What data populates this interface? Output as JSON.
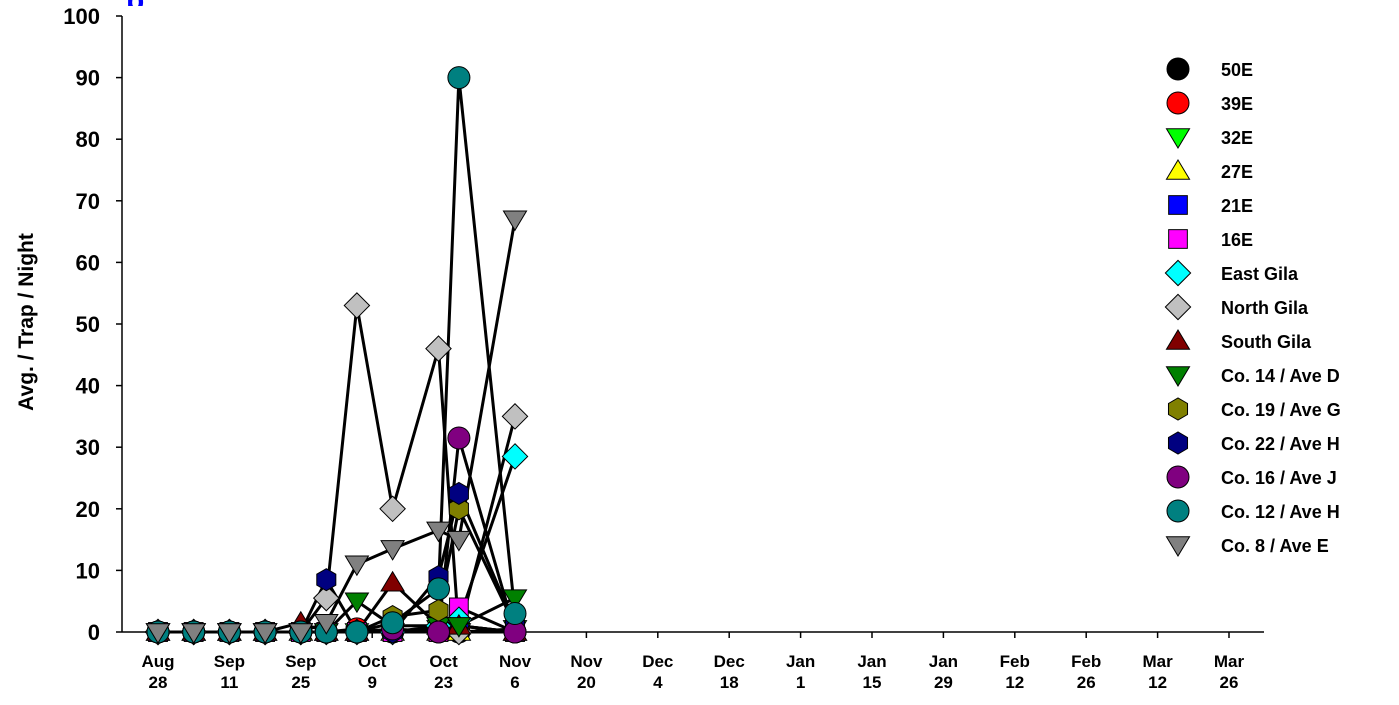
{
  "chart_data": {
    "type": "line",
    "title": "",
    "xlabel": "",
    "ylabel": "Avg. / Trap / Night",
    "ylim": [
      0,
      100
    ],
    "yticks": [
      0,
      10,
      20,
      30,
      40,
      50,
      60,
      70,
      80,
      90,
      100
    ],
    "xlim": [
      "2006-08-28",
      "2007-03-26"
    ],
    "x_ticks": [
      {
        "date": "2006-08-28",
        "line1": "Aug",
        "line2": "28"
      },
      {
        "date": "2006-09-11",
        "line1": "Sep",
        "line2": "11"
      },
      {
        "date": "2006-09-25",
        "line1": "Sep",
        "line2": "25"
      },
      {
        "date": "2006-10-09",
        "line1": "Oct",
        "line2": "9"
      },
      {
        "date": "2006-10-23",
        "line1": "Oct",
        "line2": "23"
      },
      {
        "date": "2006-11-06",
        "line1": "Nov",
        "line2": "6"
      },
      {
        "date": "2006-11-20",
        "line1": "Nov",
        "line2": "20"
      },
      {
        "date": "2006-12-04",
        "line1": "Dec",
        "line2": "4"
      },
      {
        "date": "2006-12-18",
        "line1": "Dec",
        "line2": "18"
      },
      {
        "date": "2007-01-01",
        "line1": "Jan",
        "line2": "1"
      },
      {
        "date": "2007-01-15",
        "line1": "Jan",
        "line2": "15"
      },
      {
        "date": "2007-01-29",
        "line1": "Jan",
        "line2": "29"
      },
      {
        "date": "2007-02-12",
        "line1": "Feb",
        "line2": "12"
      },
      {
        "date": "2007-02-26",
        "line1": "Feb",
        "line2": "26"
      },
      {
        "date": "2007-03-12",
        "line1": "Mar",
        "line2": "12"
      },
      {
        "date": "2007-03-26",
        "line1": "Mar",
        "line2": "26"
      }
    ],
    "legend_position": "right",
    "line_color": "#000000",
    "series": [
      {
        "name": "50E",
        "marker": "circle",
        "color": "#000000",
        "x": [
          "2006-08-28",
          "2006-09-04",
          "2006-09-11",
          "2006-09-18",
          "2006-09-25",
          "2006-09-30",
          "2006-10-06",
          "2006-10-13",
          "2006-10-22",
          "2006-10-26",
          "2006-11-06"
        ],
        "y": [
          0,
          0,
          0,
          0,
          0,
          0,
          0,
          0,
          0,
          0,
          0
        ]
      },
      {
        "name": "39E",
        "marker": "circle",
        "color": "#ff0000",
        "x": [
          "2006-08-28",
          "2006-09-04",
          "2006-09-11",
          "2006-09-18",
          "2006-09-25",
          "2006-09-30",
          "2006-10-06",
          "2006-10-13",
          "2006-10-22",
          "2006-10-26",
          "2006-11-06"
        ],
        "y": [
          0,
          0,
          0,
          0,
          0,
          0,
          0.5,
          0,
          0.5,
          1,
          0
        ]
      },
      {
        "name": "32E",
        "marker": "triangle-down",
        "color": "#00ff00",
        "x": [
          "2006-08-28",
          "2006-09-04",
          "2006-09-11",
          "2006-09-18",
          "2006-09-25",
          "2006-09-30",
          "2006-10-06",
          "2006-10-13",
          "2006-10-22",
          "2006-10-26",
          "2006-11-06"
        ],
        "y": [
          0,
          0,
          0,
          0,
          0,
          0,
          0,
          0,
          0.5,
          0,
          0.5
        ]
      },
      {
        "name": "27E",
        "marker": "triangle-up",
        "color": "#ffff00",
        "x": [
          "2006-08-28",
          "2006-09-04",
          "2006-09-11",
          "2006-09-18",
          "2006-09-25",
          "2006-09-30",
          "2006-10-06",
          "2006-10-13",
          "2006-10-22",
          "2006-10-26",
          "2006-11-06"
        ],
        "y": [
          0,
          0,
          0,
          0,
          0,
          0,
          0,
          0,
          0,
          0,
          0
        ]
      },
      {
        "name": "21E",
        "marker": "square",
        "color": "#0000ff",
        "x": [
          "2006-08-28",
          "2006-09-04",
          "2006-09-11",
          "2006-09-18",
          "2006-09-25",
          "2006-09-30",
          "2006-10-06",
          "2006-10-13",
          "2006-10-22",
          "2006-10-26",
          "2006-11-06"
        ],
        "y": [
          0,
          0,
          0,
          0,
          0,
          0,
          0,
          0,
          0,
          1,
          0
        ]
      },
      {
        "name": "16E",
        "marker": "square",
        "color": "#ff00ff",
        "x": [
          "2006-08-28",
          "2006-09-04",
          "2006-09-11",
          "2006-09-18",
          "2006-09-25",
          "2006-09-30",
          "2006-10-06",
          "2006-10-13",
          "2006-10-22",
          "2006-10-26",
          "2006-11-06"
        ],
        "y": [
          0,
          0,
          0,
          0,
          0,
          0,
          0,
          0,
          0,
          4,
          0
        ]
      },
      {
        "name": "East Gila",
        "marker": "diamond",
        "color": "#00ffff",
        "x": [
          "2006-08-28",
          "2006-09-04",
          "2006-09-11",
          "2006-09-18",
          "2006-09-25",
          "2006-09-30",
          "2006-10-06",
          "2006-10-13",
          "2006-10-22",
          "2006-10-26",
          "2006-11-06"
        ],
        "y": [
          0,
          0,
          0,
          0,
          0,
          0,
          0,
          0,
          1,
          2,
          28.5
        ]
      },
      {
        "name": "North Gila",
        "marker": "diamond",
        "color": "#c0c0c0",
        "x": [
          "2006-08-28",
          "2006-09-04",
          "2006-09-11",
          "2006-09-18",
          "2006-09-25",
          "2006-09-30",
          "2006-10-06",
          "2006-10-13",
          "2006-10-22",
          "2006-10-26",
          "2006-11-06"
        ],
        "y": [
          0,
          0,
          0,
          0,
          0,
          5.5,
          53,
          20,
          46,
          0,
          35
        ]
      },
      {
        "name": "South Gila",
        "marker": "triangle-up",
        "color": "#800000",
        "x": [
          "2006-08-28",
          "2006-09-04",
          "2006-09-11",
          "2006-09-18",
          "2006-09-25",
          "2006-09-30",
          "2006-10-06",
          "2006-10-13",
          "2006-10-22",
          "2006-10-26",
          "2006-11-06"
        ],
        "y": [
          0,
          0,
          0,
          0,
          1.5,
          0,
          0,
          8,
          1,
          1,
          0
        ]
      },
      {
        "name": "Co. 14 / Ave D",
        "marker": "triangle-down",
        "color": "#008000",
        "x": [
          "2006-08-28",
          "2006-09-04",
          "2006-09-11",
          "2006-09-18",
          "2006-09-25",
          "2006-09-30",
          "2006-10-06",
          "2006-10-13",
          "2006-10-22",
          "2006-10-26",
          "2006-11-06"
        ],
        "y": [
          0,
          0,
          0,
          0,
          0,
          0,
          5,
          1,
          1,
          1,
          5.5
        ]
      },
      {
        "name": "Co. 19 / Ave G",
        "marker": "hexagon",
        "color": "#808000",
        "x": [
          "2006-08-28",
          "2006-09-04",
          "2006-09-11",
          "2006-09-18",
          "2006-09-25",
          "2006-09-30",
          "2006-10-06",
          "2006-10-13",
          "2006-10-22",
          "2006-10-26",
          "2006-11-06"
        ],
        "y": [
          0,
          0,
          0,
          0,
          0,
          0,
          0,
          2.5,
          3.5,
          20,
          1
        ]
      },
      {
        "name": "Co. 22 / Ave H",
        "marker": "hexagon",
        "color": "#000080",
        "x": [
          "2006-08-28",
          "2006-09-04",
          "2006-09-11",
          "2006-09-18",
          "2006-09-25",
          "2006-09-30",
          "2006-10-06",
          "2006-10-13",
          "2006-10-22",
          "2006-10-26",
          "2006-11-06"
        ],
        "y": [
          0,
          0,
          0,
          0,
          0,
          8.5,
          0,
          0,
          9,
          22.5,
          1
        ]
      },
      {
        "name": "Co. 16 / Ave J",
        "marker": "circle",
        "color": "#800080",
        "x": [
          "2006-08-28",
          "2006-09-04",
          "2006-09-11",
          "2006-09-18",
          "2006-09-25",
          "2006-09-30",
          "2006-10-06",
          "2006-10-13",
          "2006-10-22",
          "2006-10-26",
          "2006-11-06"
        ],
        "y": [
          0,
          0,
          0,
          0,
          0,
          0,
          0,
          0.5,
          0,
          31.5,
          0
        ]
      },
      {
        "name": "Co. 12 / Ave H",
        "marker": "circle",
        "color": "#008080",
        "x": [
          "2006-08-28",
          "2006-09-04",
          "2006-09-11",
          "2006-09-18",
          "2006-09-25",
          "2006-09-30",
          "2006-10-06",
          "2006-10-13",
          "2006-10-22",
          "2006-10-26",
          "2006-11-06"
        ],
        "y": [
          0,
          0,
          0,
          0,
          0,
          0,
          0,
          1.5,
          7,
          90,
          3
        ]
      },
      {
        "name": "Co. 8 / Ave E",
        "marker": "triangle-down",
        "color": "#808080",
        "x": [
          "2006-08-28",
          "2006-09-04",
          "2006-09-11",
          "2006-09-18",
          "2006-09-25",
          "2006-09-30",
          "2006-10-06",
          "2006-10-13",
          "2006-10-22",
          "2006-10-26",
          "2006-11-06"
        ],
        "y": [
          0,
          0,
          0,
          0,
          0,
          1.5,
          11,
          13.5,
          16.5,
          15,
          67
        ]
      }
    ]
  }
}
